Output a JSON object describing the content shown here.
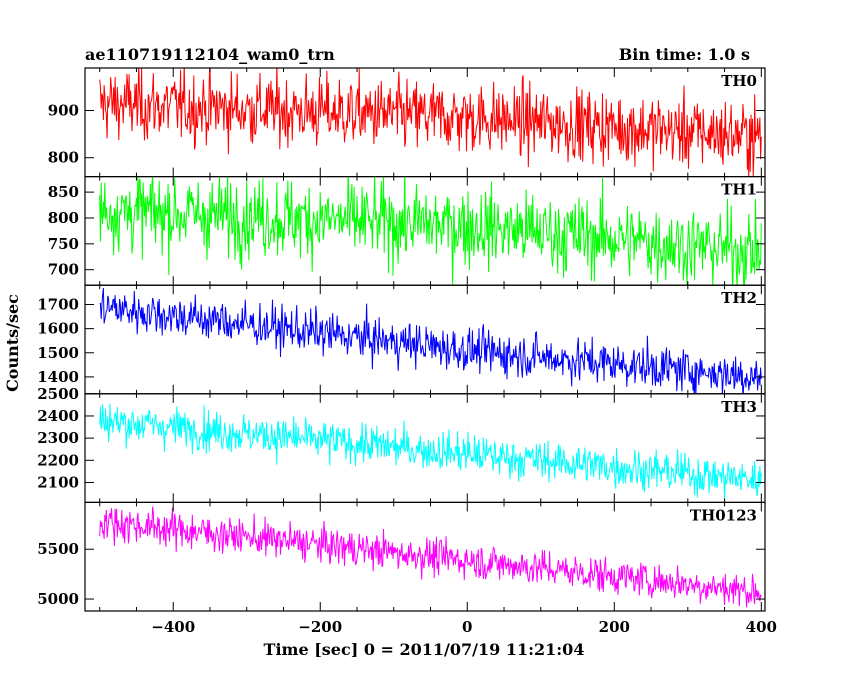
{
  "header": {
    "left_title": "ae110719112104_wam0_trn",
    "right_title": "Bin time: 1.0 s"
  },
  "axis": {
    "ylabel": "Counts/sec",
    "xlabel": "Time [sec] 0 = 2011/07/19 11:21:04"
  },
  "chart_data": {
    "type": "line",
    "x_range": [
      -520,
      405
    ],
    "x_ticks": [
      -400,
      -200,
      0,
      200,
      400
    ],
    "x_tick_labels": [
      "−400",
      "−200",
      "0",
      "200",
      "400"
    ],
    "bin_time_s": 1.0,
    "panels": [
      {
        "name": "TH0",
        "color": "#ff0000",
        "ylim": [
          760,
          990
        ],
        "y_ticks": [
          800,
          900
        ],
        "trend": {
          "x": [
            -500,
            0,
            400
          ],
          "y": [
            915,
            885,
            845
          ]
        },
        "noise_sd": 38
      },
      {
        "name": "TH1",
        "color": "#00ff00",
        "ylim": [
          670,
          880
        ],
        "y_ticks": [
          700,
          750,
          800,
          850
        ],
        "trend": {
          "x": [
            -500,
            0,
            400
          ],
          "y": [
            815,
            785,
            735
          ]
        },
        "noise_sd": 38
      },
      {
        "name": "TH2",
        "color": "#0000ff",
        "ylim": [
          1330,
          1780
        ],
        "y_ticks": [
          1400,
          1500,
          1600,
          1700
        ],
        "trend": {
          "x": [
            -500,
            0,
            400
          ],
          "y": [
            1690,
            1510,
            1400
          ]
        },
        "noise_sd": 45
      },
      {
        "name": "TH3",
        "color": "#00ffff",
        "ylim": [
          2010,
          2500
        ],
        "y_ticks": [
          2100,
          2200,
          2300,
          2400,
          2500
        ],
        "trend": {
          "x": [
            -500,
            0,
            400
          ],
          "y": [
            2380,
            2230,
            2110
          ]
        },
        "noise_sd": 45
      },
      {
        "name": "TH0123",
        "color": "#ff00ff",
        "ylim": [
          4880,
          5970
        ],
        "y_ticks": [
          5000,
          5500
        ],
        "trend": {
          "x": [
            -500,
            0,
            400
          ],
          "y": [
            5780,
            5390,
            5070
          ]
        },
        "noise_sd": 90
      }
    ]
  }
}
